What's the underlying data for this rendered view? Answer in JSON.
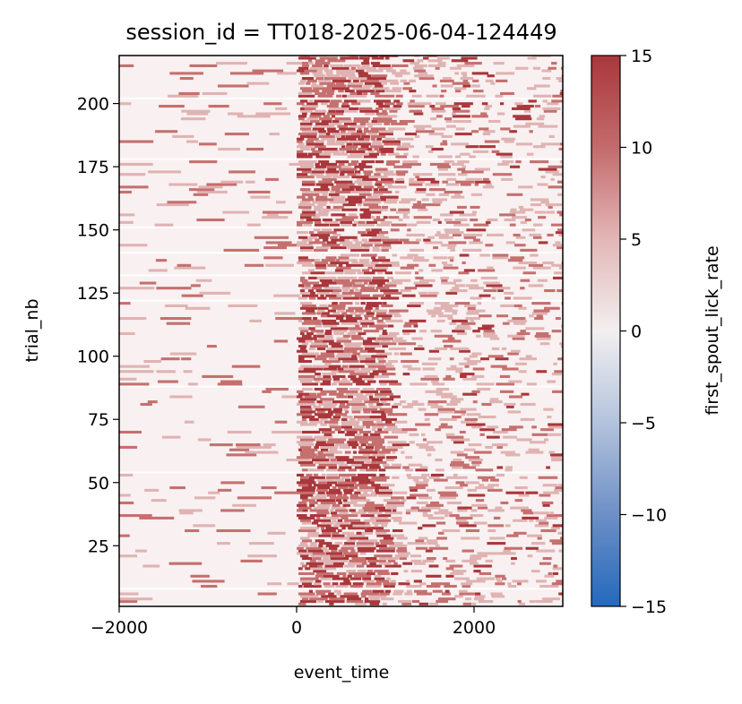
{
  "chart_data": {
    "type": "heatmap",
    "title": "session_id = TT018-2025-06-04-124449",
    "xlabel": "event_time",
    "ylabel": "trial_nb",
    "xlim": [
      -2000,
      3000
    ],
    "ylim": [
      1,
      219
    ],
    "x_ticks": [
      -2000,
      0,
      2000
    ],
    "x_tick_labels": [
      "−2000",
      "0",
      "2000"
    ],
    "y_ticks": [
      25,
      50,
      75,
      100,
      125,
      150,
      175,
      200
    ],
    "y_tick_labels": [
      "25",
      "50",
      "75",
      "100",
      "125",
      "150",
      "175",
      "200"
    ],
    "colorbar": {
      "label": "first_spout_lick_rate",
      "vmin": -15,
      "vmax": 15,
      "ticks": [
        15,
        10,
        5,
        0,
        -5,
        -10,
        -15
      ],
      "tick_labels": [
        "15",
        "10",
        "5",
        "0",
        "−5",
        "−10",
        "−15"
      ],
      "colormap": "vlag",
      "colors": [
        "#2369bd",
        "#6d8fc6",
        "#b3c3dc",
        "#f2eff0",
        "#e3b6b6",
        "#c36b6c",
        "#a9373b"
      ]
    },
    "grid": false,
    "value_levels": [
      0,
      5,
      10,
      15
    ],
    "level_colors": [
      "#f9f1f1",
      "#e0b3b3",
      "#c5706f",
      "#a9373b"
    ],
    "pattern_note_free": true,
    "time_windows": [
      {
        "start": -2000,
        "end": 0,
        "typical_rate": 0,
        "occasional_rate": 10
      },
      {
        "start": 0,
        "end": 1000,
        "typical_rate": 10,
        "occasional_rate": 15
      },
      {
        "start": 1000,
        "end": 3000,
        "typical_rate": 5,
        "occasional_rate": 10
      }
    ]
  }
}
